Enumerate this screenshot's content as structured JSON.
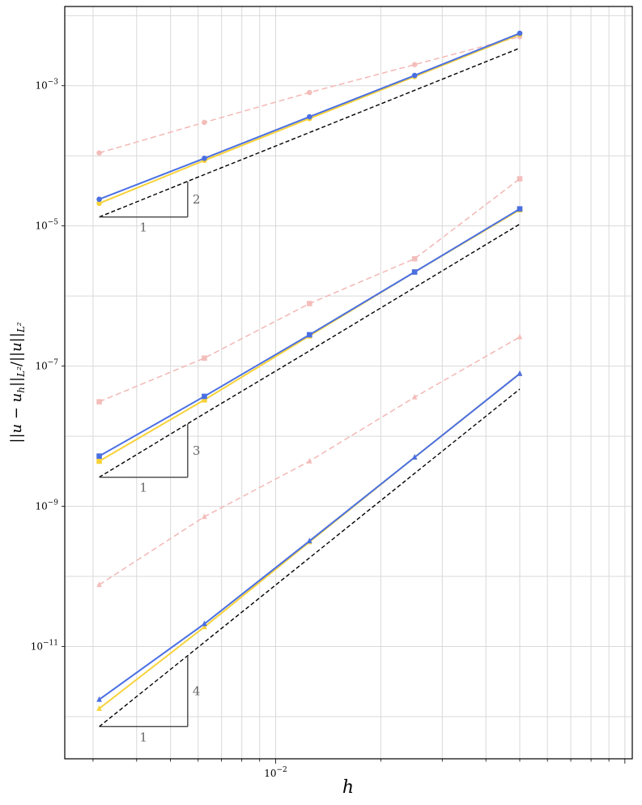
{
  "chart_data": {
    "type": "line",
    "title": "",
    "xlabel": "h",
    "ylabel": "||u − u_h||_{L²} / ||u||_{L²}",
    "xscale": "log",
    "yscale": "log",
    "xlim": [
      0.00249,
      0.105
    ],
    "ylim": [
      2.5e-13,
      0.0135
    ],
    "grid": true,
    "legend": "none",
    "x": [
      0.003125,
      0.00625,
      0.0125,
      0.025,
      0.05
    ],
    "xticks": [
      {
        "value": 0.01,
        "base": "10",
        "exp": "−2"
      }
    ],
    "yticks": [
      {
        "value": 0.001,
        "base": "10",
        "exp": "−3"
      },
      {
        "value": 1e-05,
        "base": "10",
        "exp": "−5"
      },
      {
        "value": 1e-07,
        "base": "10",
        "exp": "−7"
      },
      {
        "value": 1e-09,
        "base": "10",
        "exp": "−9"
      },
      {
        "value": 1e-11,
        "base": "10",
        "exp": "−11"
      }
    ],
    "colors": {
      "pink": "#f2b8b5",
      "yellow": "#f7d23a",
      "blue": "#4a6fe3",
      "reference": "#000000",
      "triangle": "#444444"
    },
    "groups": [
      {
        "marker": "circle",
        "series": [
          {
            "color": "pink",
            "dashed": true,
            "values": [
              0.00011,
              0.0003,
              0.0008,
              0.002,
              0.005
            ]
          },
          {
            "color": "yellow",
            "dashed": false,
            "values": [
              2.1e-05,
              8.6e-05,
              0.00034,
              0.00135,
              0.0054
            ]
          },
          {
            "color": "blue",
            "dashed": false,
            "values": [
              2.4e-05,
              9.2e-05,
              0.00036,
              0.0014,
              0.0056
            ]
          },
          {
            "color": "reference",
            "dashed": true,
            "values": [
              1.34e-05,
              5.4e-05,
              0.000215,
              0.00086,
              0.00344
            ]
          }
        ],
        "triangle": {
          "h1": 0.003125,
          "h2": 0.0056,
          "y": 1.34e-05,
          "slope": 2,
          "rise_label": "2",
          "run_label": "1"
        }
      },
      {
        "marker": "square",
        "series": [
          {
            "color": "pink",
            "dashed": true,
            "values": [
              3.1e-08,
              1.3e-07,
              7.8e-07,
              3.4e-06,
              4.7e-05
            ]
          },
          {
            "color": "yellow",
            "dashed": false,
            "values": [
              4.4e-09,
              3.3e-08,
              2.7e-07,
              2.2e-06,
              1.7e-05
            ]
          },
          {
            "color": "blue",
            "dashed": false,
            "values": [
              5.2e-09,
              3.7e-08,
              2.8e-07,
              2.2e-06,
              1.75e-05
            ]
          },
          {
            "color": "reference",
            "dashed": true,
            "values": [
              2.6e-09,
              2.1e-08,
              1.65e-07,
              1.32e-06,
              1.06e-05
            ]
          }
        ],
        "triangle": {
          "h1": 0.003125,
          "h2": 0.0056,
          "y": 2.6e-09,
          "slope": 3,
          "rise_label": "3",
          "run_label": "1"
        }
      },
      {
        "marker": "triangle",
        "series": [
          {
            "color": "pink",
            "dashed": true,
            "values": [
              7.6e-11,
              7.1e-10,
              4.4e-09,
              3.6e-08,
              2.6e-07
            ]
          },
          {
            "color": "yellow",
            "dashed": false,
            "values": [
              1.3e-12,
              1.9e-11,
              3.1e-10,
              5e-09,
              7.8e-08
            ]
          },
          {
            "color": "blue",
            "dashed": false,
            "values": [
              1.75e-12,
              2.1e-11,
              3.2e-10,
              5e-09,
              7.8e-08
            ]
          },
          {
            "color": "reference",
            "dashed": true,
            "values": [
              7.2e-13,
              1.15e-11,
              1.84e-10,
              2.95e-09,
              4.7e-08
            ]
          }
        ],
        "triangle": {
          "h1": 0.003125,
          "h2": 0.0056,
          "y": 7.2e-13,
          "slope": 4,
          "rise_label": "4",
          "run_label": "1"
        }
      }
    ]
  }
}
